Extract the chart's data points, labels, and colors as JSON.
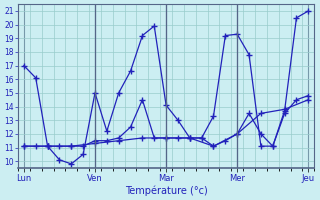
{
  "xlabel": "Température (°c)",
  "background_color": "#cceef2",
  "line_color": "#2222bb",
  "grid_color": "#99cccc",
  "ylim": [
    9.5,
    21.5
  ],
  "yticks": [
    10,
    11,
    12,
    13,
    14,
    15,
    16,
    17,
    18,
    19,
    20,
    21
  ],
  "day_labels": [
    "Lun",
    "Ven",
    "Mar",
    "Mer",
    "Jeu"
  ],
  "day_x": [
    0,
    6,
    12,
    18,
    24
  ],
  "series1_x": [
    0,
    1,
    2,
    3,
    4,
    5,
    6,
    7,
    8,
    9,
    10,
    11,
    12,
    13,
    14,
    15,
    16,
    17,
    18,
    19,
    20,
    21,
    22,
    23,
    24
  ],
  "series1_y": [
    17.0,
    16.1,
    11.1,
    10.1,
    9.8,
    10.5,
    15.0,
    12.2,
    15.0,
    16.6,
    19.2,
    19.9,
    14.1,
    13.0,
    11.7,
    11.7,
    13.3,
    19.2,
    19.3,
    17.8,
    11.1,
    11.1,
    13.7,
    20.5,
    21.0
  ],
  "series2_x": [
    0,
    1,
    2,
    3,
    4,
    5,
    6,
    7,
    8,
    9,
    10,
    11,
    12,
    13,
    14,
    15,
    16,
    17,
    18,
    19,
    20,
    21,
    22,
    23,
    24
  ],
  "series2_y": [
    11.1,
    11.1,
    11.1,
    11.1,
    11.1,
    11.1,
    11.5,
    11.5,
    11.7,
    12.5,
    14.5,
    11.7,
    11.7,
    11.7,
    11.7,
    11.7,
    11.1,
    11.5,
    12.0,
    13.5,
    12.0,
    11.1,
    13.5,
    14.5,
    14.8
  ],
  "series3_x": [
    0,
    2,
    4,
    6,
    8,
    10,
    12,
    14,
    16,
    18,
    20,
    22,
    24
  ],
  "series3_y": [
    11.1,
    11.1,
    11.1,
    11.3,
    11.5,
    11.7,
    11.7,
    11.7,
    11.1,
    12.0,
    13.5,
    13.8,
    14.5
  ]
}
